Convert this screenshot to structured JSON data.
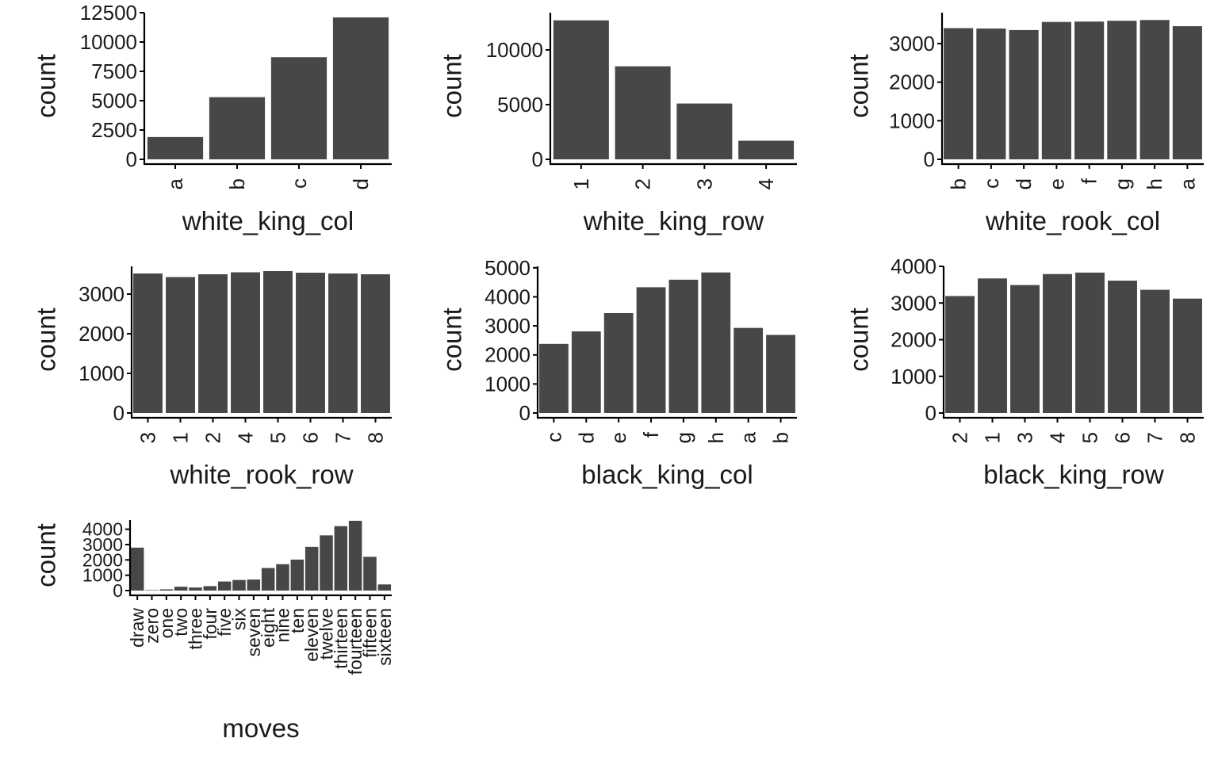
{
  "style": {
    "bar_color": "#474747",
    "axis_color": "#000000",
    "background": "#ffffff"
  },
  "chart_data": [
    {
      "type": "bar",
      "xlabel": "white_king_col",
      "ylabel": "count",
      "categories": [
        "a",
        "b",
        "c",
        "d"
      ],
      "values": [
        1900,
        5300,
        8700,
        12100
      ],
      "ylim": [
        0,
        12500
      ],
      "yticks": [
        0,
        2500,
        5000,
        7500,
        10000,
        12500
      ],
      "grid": false,
      "legend": "none"
    },
    {
      "type": "bar",
      "xlabel": "white_king_row",
      "ylabel": "count",
      "categories": [
        "1",
        "2",
        "3",
        "4"
      ],
      "values": [
        12700,
        8500,
        5100,
        1700
      ],
      "ylim": [
        0,
        13400
      ],
      "yticks": [
        0,
        5000,
        10000
      ],
      "grid": false,
      "legend": "none"
    },
    {
      "type": "bar",
      "xlabel": "white_rook_col",
      "ylabel": "count",
      "categories": [
        "b",
        "c",
        "d",
        "e",
        "f",
        "g",
        "h",
        "a"
      ],
      "values": [
        3400,
        3390,
        3350,
        3560,
        3570,
        3590,
        3610,
        3450
      ],
      "ylim": [
        0,
        3800
      ],
      "yticks": [
        0,
        1000,
        2000,
        3000
      ],
      "grid": false,
      "legend": "none"
    },
    {
      "type": "bar",
      "xlabel": "white_rook_row",
      "ylabel": "count",
      "categories": [
        "3",
        "1",
        "2",
        "4",
        "5",
        "6",
        "7",
        "8"
      ],
      "values": [
        3520,
        3430,
        3500,
        3550,
        3580,
        3540,
        3520,
        3500
      ],
      "ylim": [
        0,
        3700
      ],
      "yticks": [
        0,
        1000,
        2000,
        3000
      ],
      "grid": false,
      "legend": "none"
    },
    {
      "type": "bar",
      "xlabel": "black_king_col",
      "ylabel": "count",
      "categories": [
        "c",
        "d",
        "e",
        "f",
        "g",
        "h",
        "a",
        "b"
      ],
      "values": [
        2380,
        2810,
        3440,
        4330,
        4590,
        4840,
        2930,
        2690
      ],
      "ylim": [
        0,
        5050
      ],
      "yticks": [
        0,
        1000,
        2000,
        3000,
        4000,
        5000
      ],
      "grid": false,
      "legend": "none"
    },
    {
      "type": "bar",
      "xlabel": "black_king_row",
      "ylabel": "count",
      "categories": [
        "2",
        "1",
        "3",
        "4",
        "5",
        "6",
        "7",
        "8"
      ],
      "values": [
        3190,
        3670,
        3490,
        3790,
        3830,
        3610,
        3360,
        3120
      ],
      "ylim": [
        0,
        4000
      ],
      "yticks": [
        0,
        1000,
        2000,
        3000,
        4000
      ],
      "grid": false,
      "legend": "none"
    },
    {
      "type": "bar",
      "xlabel": "moves",
      "ylabel": "count",
      "categories": [
        "draw",
        "zero",
        "one",
        "two",
        "three",
        "four",
        "five",
        "six",
        "seven",
        "eight",
        "nine",
        "ten",
        "eleven",
        "twelve",
        "thirteen",
        "fourteen",
        "fifteen",
        "sixteen"
      ],
      "values": [
        2800,
        30,
        80,
        250,
        200,
        290,
        590,
        690,
        720,
        1470,
        1720,
        2020,
        2850,
        3600,
        4200,
        4550,
        2200,
        400
      ],
      "ylim": [
        0,
        4600
      ],
      "yticks": [
        0,
        1000,
        2000,
        3000,
        4000
      ],
      "grid": false,
      "legend": "none"
    }
  ]
}
